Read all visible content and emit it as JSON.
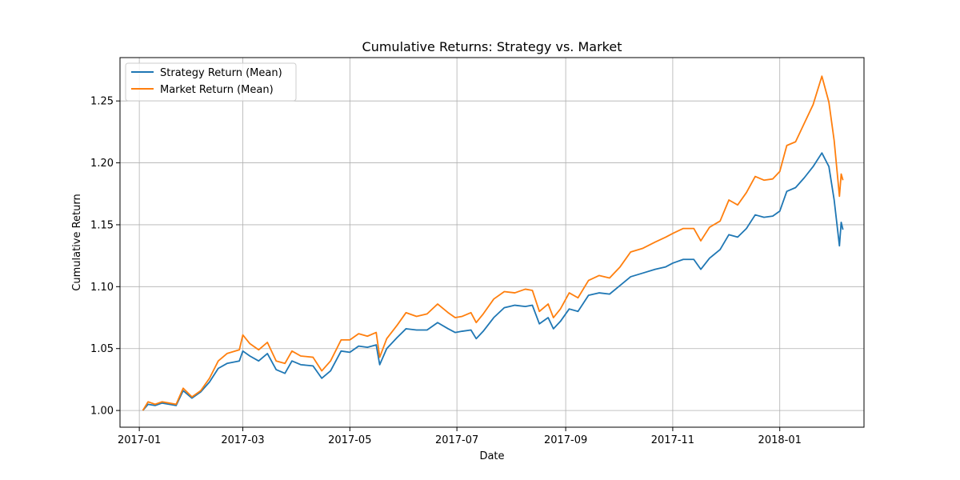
{
  "chart_data": {
    "type": "line",
    "title": "Cumulative Returns: Strategy vs. Market",
    "xlabel": "Date",
    "ylabel": "Cumulative Return",
    "xlim": [
      "2016-12-21",
      "2018-02-18"
    ],
    "ylim": [
      0.9865,
      1.285
    ],
    "grid": true,
    "legend_position": "top-left",
    "x_ticks": [
      "2017-01-01",
      "2017-03-01",
      "2017-05-01",
      "2017-07-01",
      "2017-09-01",
      "2017-11-01",
      "2018-01-01"
    ],
    "x_tick_labels": [
      "2017-01",
      "2017-03",
      "2017-05",
      "2017-07",
      "2017-09",
      "2017-11",
      "2018-01"
    ],
    "y_ticks": [
      1.0,
      1.05,
      1.1,
      1.15,
      1.2,
      1.25
    ],
    "y_tick_labels": [
      "1.00",
      "1.05",
      "1.10",
      "1.15",
      "1.20",
      "1.25"
    ],
    "series": [
      {
        "name": "Strategy Return (Mean)",
        "color": "#1f77b4",
        "points": [
          [
            "2017-01-03",
            1.0
          ],
          [
            "2017-01-06",
            1.005
          ],
          [
            "2017-01-10",
            1.004
          ],
          [
            "2017-01-14",
            1.006
          ],
          [
            "2017-01-18",
            1.005
          ],
          [
            "2017-01-22",
            1.004
          ],
          [
            "2017-01-26",
            1.016
          ],
          [
            "2017-01-31",
            1.01
          ],
          [
            "2017-02-05",
            1.015
          ],
          [
            "2017-02-10",
            1.023
          ],
          [
            "2017-02-15",
            1.034
          ],
          [
            "2017-02-20",
            1.038
          ],
          [
            "2017-02-27",
            1.04
          ],
          [
            "2017-03-01",
            1.048
          ],
          [
            "2017-03-05",
            1.044
          ],
          [
            "2017-03-10",
            1.04
          ],
          [
            "2017-03-15",
            1.046
          ],
          [
            "2017-03-20",
            1.033
          ],
          [
            "2017-03-25",
            1.03
          ],
          [
            "2017-03-29",
            1.04
          ],
          [
            "2017-04-03",
            1.037
          ],
          [
            "2017-04-10",
            1.036
          ],
          [
            "2017-04-15",
            1.026
          ],
          [
            "2017-04-20",
            1.032
          ],
          [
            "2017-04-26",
            1.048
          ],
          [
            "2017-05-01",
            1.047
          ],
          [
            "2017-05-06",
            1.052
          ],
          [
            "2017-05-11",
            1.051
          ],
          [
            "2017-05-16",
            1.053
          ],
          [
            "2017-05-18",
            1.037
          ],
          [
            "2017-05-22",
            1.05
          ],
          [
            "2017-05-28",
            1.059
          ],
          [
            "2017-06-02",
            1.066
          ],
          [
            "2017-06-08",
            1.065
          ],
          [
            "2017-06-14",
            1.065
          ],
          [
            "2017-06-20",
            1.071
          ],
          [
            "2017-06-26",
            1.066
          ],
          [
            "2017-06-30",
            1.063
          ],
          [
            "2017-07-04",
            1.064
          ],
          [
            "2017-07-09",
            1.065
          ],
          [
            "2017-07-12",
            1.058
          ],
          [
            "2017-07-16",
            1.064
          ],
          [
            "2017-07-22",
            1.075
          ],
          [
            "2017-07-28",
            1.083
          ],
          [
            "2017-08-03",
            1.085
          ],
          [
            "2017-08-09",
            1.084
          ],
          [
            "2017-08-13",
            1.085
          ],
          [
            "2017-08-17",
            1.07
          ],
          [
            "2017-08-22",
            1.075
          ],
          [
            "2017-08-25",
            1.066
          ],
          [
            "2017-08-29",
            1.072
          ],
          [
            "2017-09-03",
            1.082
          ],
          [
            "2017-09-08",
            1.08
          ],
          [
            "2017-09-14",
            1.093
          ],
          [
            "2017-09-20",
            1.095
          ],
          [
            "2017-09-26",
            1.094
          ],
          [
            "2017-10-02",
            1.101
          ],
          [
            "2017-10-08",
            1.108
          ],
          [
            "2017-10-15",
            1.111
          ],
          [
            "2017-10-22",
            1.114
          ],
          [
            "2017-10-28",
            1.116
          ],
          [
            "2017-11-01",
            1.119
          ],
          [
            "2017-11-07",
            1.122
          ],
          [
            "2017-11-13",
            1.122
          ],
          [
            "2017-11-17",
            1.114
          ],
          [
            "2017-11-22",
            1.123
          ],
          [
            "2017-11-28",
            1.13
          ],
          [
            "2017-12-03",
            1.142
          ],
          [
            "2017-12-08",
            1.14
          ],
          [
            "2017-12-13",
            1.147
          ],
          [
            "2017-12-18",
            1.158
          ],
          [
            "2017-12-23",
            1.156
          ],
          [
            "2017-12-28",
            1.157
          ],
          [
            "2018-01-01",
            1.161
          ],
          [
            "2018-01-05",
            1.177
          ],
          [
            "2018-01-10",
            1.18
          ],
          [
            "2018-01-15",
            1.188
          ],
          [
            "2018-01-20",
            1.197
          ],
          [
            "2018-01-25",
            1.208
          ],
          [
            "2018-01-29",
            1.197
          ],
          [
            "2018-02-01",
            1.17
          ],
          [
            "2018-02-04",
            1.133
          ],
          [
            "2018-02-05",
            1.152
          ],
          [
            "2018-02-06",
            1.146
          ]
        ]
      },
      {
        "name": "Market Return (Mean)",
        "color": "#ff7f0e",
        "points": [
          [
            "2017-01-03",
            1.0
          ],
          [
            "2017-01-06",
            1.007
          ],
          [
            "2017-01-10",
            1.005
          ],
          [
            "2017-01-14",
            1.007
          ],
          [
            "2017-01-18",
            1.006
          ],
          [
            "2017-01-22",
            1.005
          ],
          [
            "2017-01-26",
            1.018
          ],
          [
            "2017-01-31",
            1.011
          ],
          [
            "2017-02-05",
            1.016
          ],
          [
            "2017-02-10",
            1.026
          ],
          [
            "2017-02-15",
            1.04
          ],
          [
            "2017-02-20",
            1.046
          ],
          [
            "2017-02-27",
            1.049
          ],
          [
            "2017-03-01",
            1.061
          ],
          [
            "2017-03-05",
            1.054
          ],
          [
            "2017-03-10",
            1.049
          ],
          [
            "2017-03-15",
            1.055
          ],
          [
            "2017-03-20",
            1.04
          ],
          [
            "2017-03-25",
            1.038
          ],
          [
            "2017-03-29",
            1.048
          ],
          [
            "2017-04-03",
            1.044
          ],
          [
            "2017-04-10",
            1.043
          ],
          [
            "2017-04-15",
            1.032
          ],
          [
            "2017-04-20",
            1.04
          ],
          [
            "2017-04-26",
            1.057
          ],
          [
            "2017-05-01",
            1.057
          ],
          [
            "2017-05-06",
            1.062
          ],
          [
            "2017-05-11",
            1.06
          ],
          [
            "2017-05-16",
            1.063
          ],
          [
            "2017-05-18",
            1.043
          ],
          [
            "2017-05-22",
            1.058
          ],
          [
            "2017-05-28",
            1.069
          ],
          [
            "2017-06-02",
            1.079
          ],
          [
            "2017-06-08",
            1.076
          ],
          [
            "2017-06-14",
            1.078
          ],
          [
            "2017-06-20",
            1.086
          ],
          [
            "2017-06-26",
            1.079
          ],
          [
            "2017-06-30",
            1.075
          ],
          [
            "2017-07-04",
            1.076
          ],
          [
            "2017-07-09",
            1.079
          ],
          [
            "2017-07-12",
            1.071
          ],
          [
            "2017-07-16",
            1.078
          ],
          [
            "2017-07-22",
            1.09
          ],
          [
            "2017-07-28",
            1.096
          ],
          [
            "2017-08-03",
            1.095
          ],
          [
            "2017-08-09",
            1.098
          ],
          [
            "2017-08-13",
            1.097
          ],
          [
            "2017-08-17",
            1.08
          ],
          [
            "2017-08-22",
            1.086
          ],
          [
            "2017-08-25",
            1.075
          ],
          [
            "2017-08-29",
            1.082
          ],
          [
            "2017-09-03",
            1.095
          ],
          [
            "2017-09-08",
            1.091
          ],
          [
            "2017-09-14",
            1.105
          ],
          [
            "2017-09-20",
            1.109
          ],
          [
            "2017-09-26",
            1.107
          ],
          [
            "2017-10-02",
            1.116
          ],
          [
            "2017-10-08",
            1.128
          ],
          [
            "2017-10-15",
            1.131
          ],
          [
            "2017-10-22",
            1.136
          ],
          [
            "2017-10-28",
            1.14
          ],
          [
            "2017-11-01",
            1.143
          ],
          [
            "2017-11-07",
            1.147
          ],
          [
            "2017-11-13",
            1.147
          ],
          [
            "2017-11-17",
            1.137
          ],
          [
            "2017-11-22",
            1.148
          ],
          [
            "2017-11-28",
            1.153
          ],
          [
            "2017-12-03",
            1.17
          ],
          [
            "2017-12-08",
            1.166
          ],
          [
            "2017-12-13",
            1.176
          ],
          [
            "2017-12-18",
            1.189
          ],
          [
            "2017-12-23",
            1.186
          ],
          [
            "2017-12-28",
            1.187
          ],
          [
            "2018-01-01",
            1.193
          ],
          [
            "2018-01-05",
            1.214
          ],
          [
            "2018-01-10",
            1.217
          ],
          [
            "2018-01-15",
            1.232
          ],
          [
            "2018-01-20",
            1.247
          ],
          [
            "2018-01-25",
            1.27
          ],
          [
            "2018-01-29",
            1.249
          ],
          [
            "2018-02-01",
            1.218
          ],
          [
            "2018-02-04",
            1.173
          ],
          [
            "2018-02-05",
            1.191
          ],
          [
            "2018-02-06",
            1.186
          ]
        ]
      }
    ]
  }
}
